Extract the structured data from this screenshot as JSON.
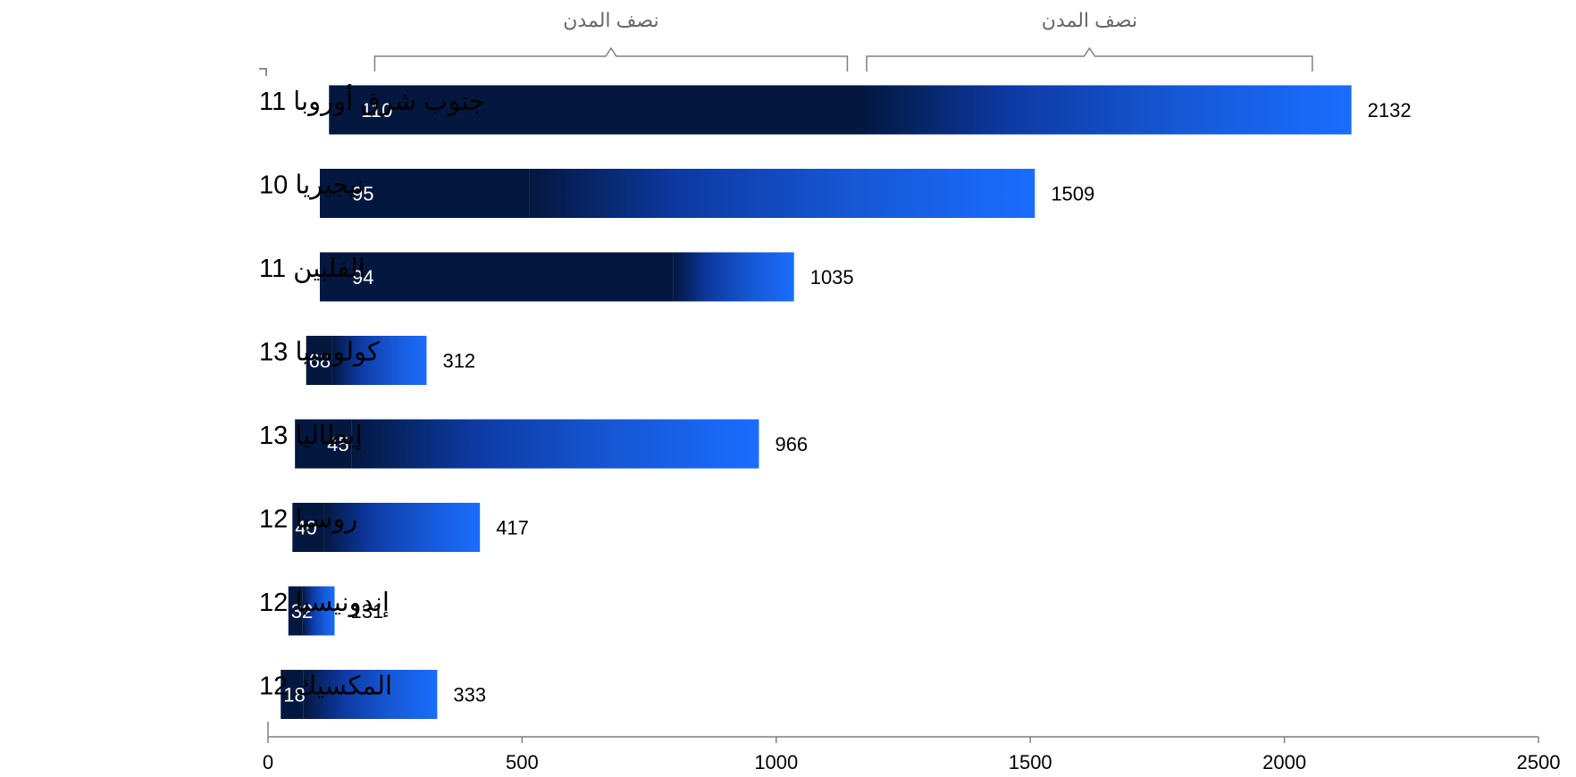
{
  "chart_data": {
    "type": "bar",
    "orientation": "horizontal",
    "stacked": true,
    "title": "",
    "xlabel": "",
    "ylabel": "",
    "xlim": [
      0,
      2500
    ],
    "x_ticks": [
      0,
      500,
      1000,
      1500,
      2000,
      2500
    ],
    "grid": false,
    "categories": [
      "جنوب شرق أوروبا 11",
      "نيجيريا 10",
      "الفلبين 11",
      "كولومبيا 13",
      "إيطاليا 13",
      "روسيا 12",
      "إندونيسيا 12",
      "المكسيك 12"
    ],
    "series": [
      {
        "color": "#03173f",
        "start": [
          120,
          102,
          102,
          75,
          53,
          48,
          40,
          25
        ],
        "end": [
          1170,
          515,
          798,
          125,
          165,
          110,
          68,
          70
        ],
        "labels": [
          110,
          95,
          94,
          68,
          45,
          40,
          32,
          18
        ]
      },
      {
        "color": "#1a6dff",
        "gradient_from": "#03173f",
        "start": [
          1170,
          515,
          798,
          125,
          165,
          110,
          68,
          70
        ],
        "end": [
          2132,
          1509,
          1035,
          312,
          966,
          417,
          131,
          333
        ],
        "labels": [
          2132,
          1509,
          1035,
          312,
          966,
          417,
          131,
          333
        ]
      }
    ],
    "annotations": [
      {
        "type": "brace",
        "text": "نصف المدن",
        "from": 210,
        "to": 1140
      },
      {
        "type": "brace",
        "text": "نصف المدن",
        "from": 1178,
        "to": 2055
      }
    ]
  }
}
